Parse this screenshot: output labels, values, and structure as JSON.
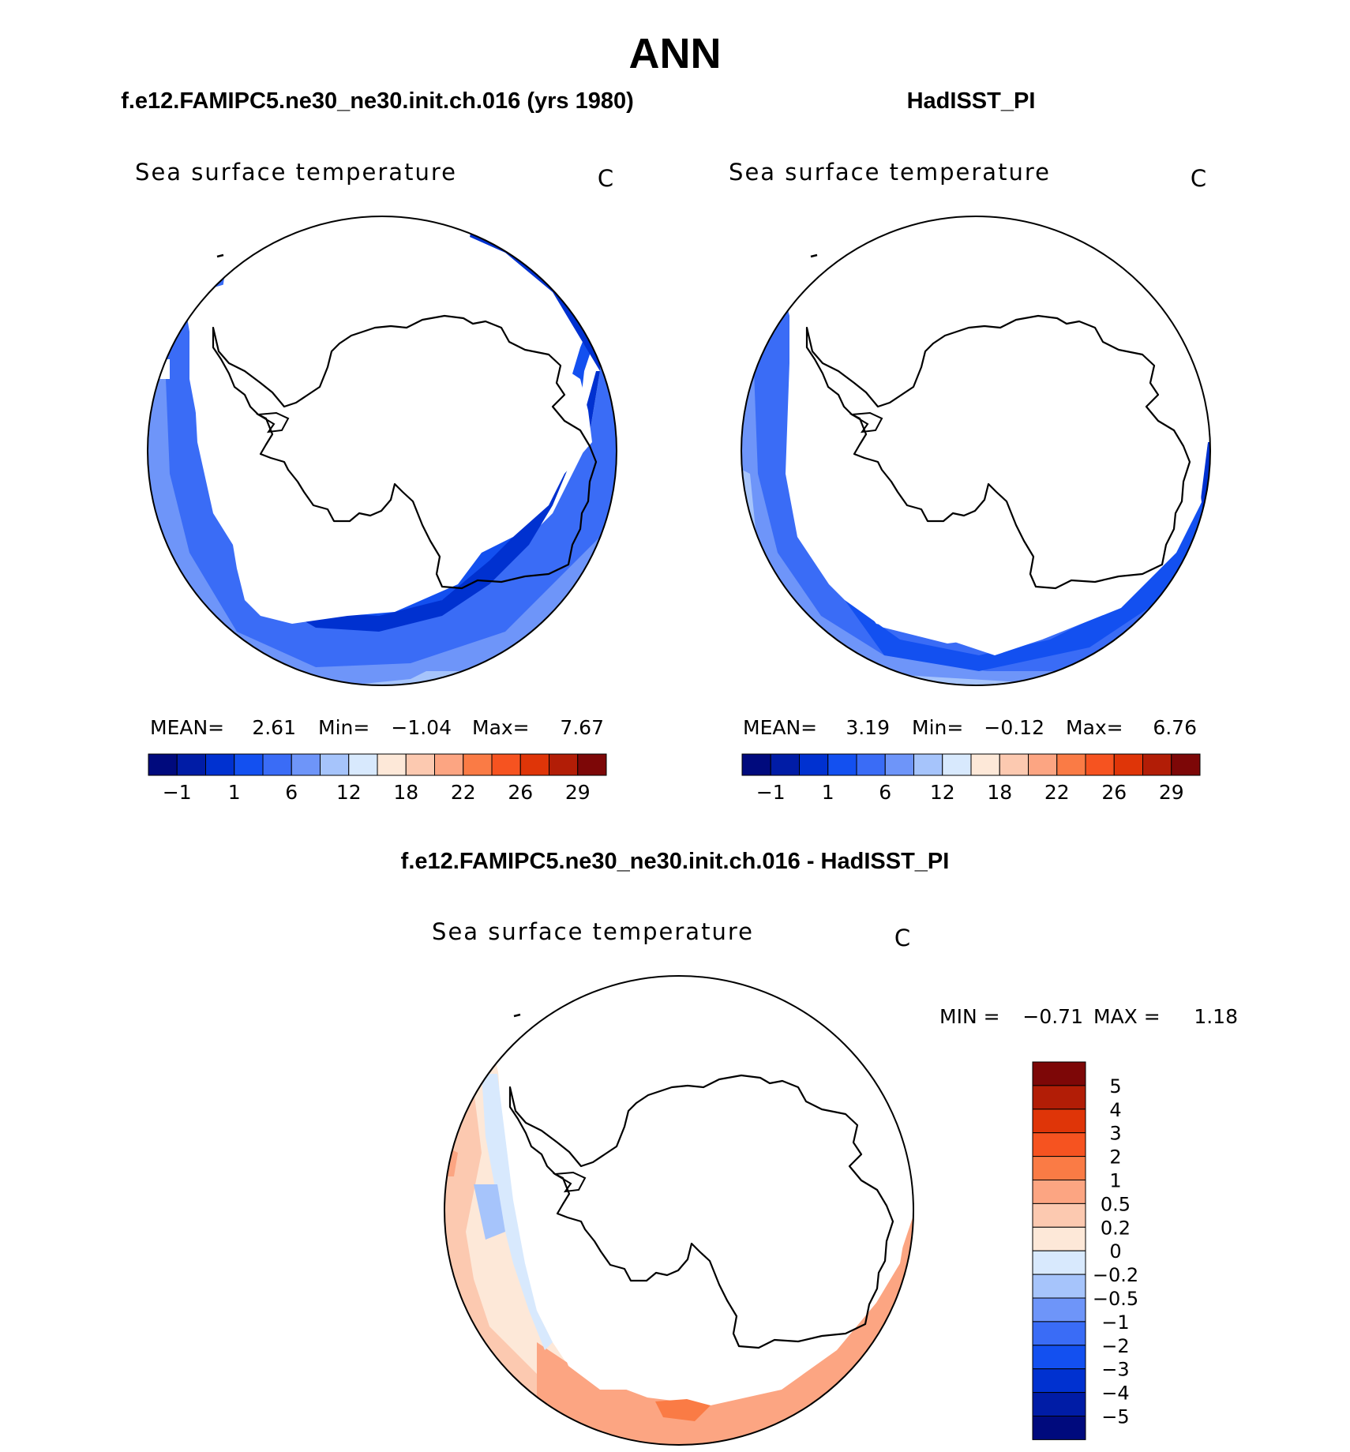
{
  "page": {
    "season": "ANN"
  },
  "panels": [
    {
      "header": "f.e12.FAMIPC5.ne30_ne30.init.ch.016 (yrs 1980)",
      "variable": "Sea surface temperature",
      "units": "C",
      "stats": {
        "mean_label": "MEAN=",
        "mean": "2.61",
        "min_label": "Min=",
        "min": "−1.04",
        "max_label": "Max=",
        "max": "7.67"
      }
    },
    {
      "header": "HadISST_PI",
      "variable": "Sea surface temperature",
      "units": "C",
      "stats": {
        "mean_label": "MEAN=",
        "mean": "3.19",
        "min_label": "Min=",
        "min": "−0.12",
        "max_label": "Max=",
        "max": "6.76"
      }
    },
    {
      "header": "f.e12.FAMIPC5.ne30_ne30.init.ch.016 - HadISST_PI",
      "variable": "Sea surface temperature",
      "units": "C",
      "stats": {
        "min_label": "MIN =",
        "min": "−0.71",
        "max_label": "MAX =",
        "max": "1.18"
      }
    }
  ],
  "colorbars": {
    "horizontal": {
      "colors": [
        "#000a7d",
        "#001ca6",
        "#0031d0",
        "#1350f0",
        "#3a6cf6",
        "#6e95f9",
        "#a6c4fb",
        "#d8e9fd",
        "#fde8d8",
        "#fcc9b0",
        "#fca582",
        "#fa7b45",
        "#f65320",
        "#df3508",
        "#b21d06",
        "#7d0707"
      ],
      "tick_labels": [
        "−1",
        "1",
        "6",
        "12",
        "18",
        "22",
        "26",
        "29"
      ]
    },
    "vertical": {
      "colors": [
        "#7d0707",
        "#b21d06",
        "#df3508",
        "#f65320",
        "#fa7b45",
        "#fca582",
        "#fcc9b0",
        "#fde8d8",
        "#d8e9fd",
        "#a6c4fb",
        "#6e95f9",
        "#3a6cf6",
        "#1350f0",
        "#0031d0",
        "#001ca6",
        "#000a7d"
      ],
      "tick_labels": [
        "5",
        "4",
        "3",
        "2",
        "1",
        "0.5",
        "0.2",
        "0",
        "−0.2",
        "−0.5",
        "−1",
        "−2",
        "−3",
        "−4",
        "−5"
      ]
    }
  }
}
